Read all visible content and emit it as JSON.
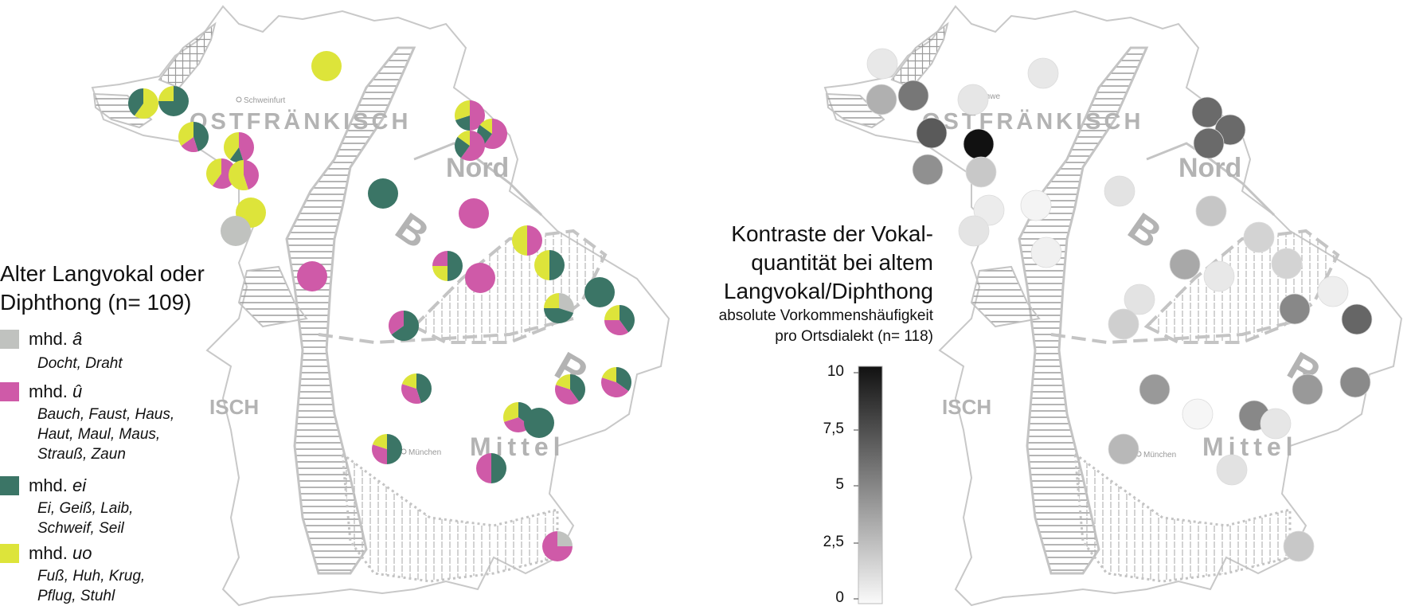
{
  "map_left": {
    "labels": {
      "ostfraenkisch": "OSTFRÄNKISCH",
      "nord": "Nord",
      "b": "B",
      "r": "R",
      "mittel": "Mittel",
      "isch": "ISCH",
      "schweinfurt": "Schweinfurt",
      "muenchen": "München"
    }
  },
  "legend": {
    "title_line1": "Alter Langvokal oder",
    "title_line2": "Diphthong (n= 109)",
    "items": [
      {
        "prefix": "mhd.",
        "vowel": "â",
        "color": "#c0c2bf",
        "words": [
          "Docht, Draht"
        ]
      },
      {
        "prefix": "mhd.",
        "vowel": "û",
        "color": "#cf5aa8",
        "words": [
          "Bauch, Faust, Haus,",
          "Haut, Maul, Maus,",
          "Strauß, Zaun"
        ]
      },
      {
        "prefix": "mhd.",
        "vowel": "ei",
        "color": "#3b7566",
        "words": [
          "Ei, Geiß, Laib,",
          "Schweif, Seil"
        ]
      },
      {
        "prefix": "mhd.",
        "vowel": "uo",
        "color": "#dde43a",
        "words": [
          "Fuß, Huh, Krug,",
          "Pflug, Stuhl"
        ]
      }
    ]
  },
  "map_right": {
    "labels": {
      "ostfraenkisch": "OSTFRÄNKISCH",
      "nord": "Nord",
      "b": "B",
      "r": "R",
      "mittel": "Mittel",
      "isch": "ISCH",
      "schweinfurt": "Schwe",
      "muenchen": "München"
    },
    "title_lines": [
      "Kontraste der Vokal-",
      "quantität bei altem",
      "Langvokal/Diphthong"
    ],
    "subtitle_lines": [
      "absolute Vorkommenshäufigkeit",
      "pro  Ortsdialekt (n= 118)"
    ],
    "scale": {
      "min": 0,
      "max": 10,
      "ticks": [
        "10",
        "7,5",
        "5",
        "2,5",
        "0"
      ]
    }
  },
  "colors": {
    "a": "#c0c2bf",
    "u": "#cf5aa8",
    "ei": "#3b7566",
    "uo": "#dde43a",
    "outline": "#c4c4c4"
  }
}
